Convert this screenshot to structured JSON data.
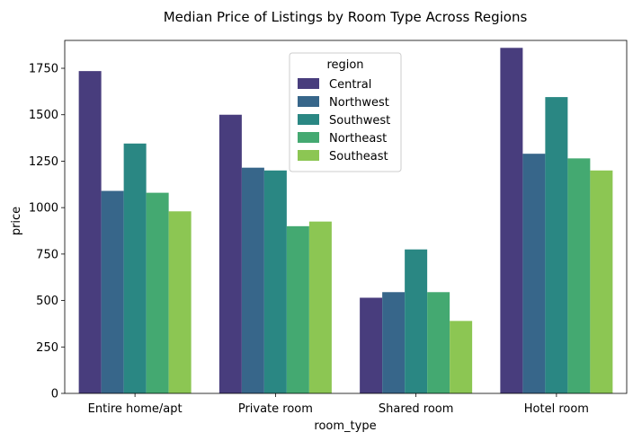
{
  "chart_data": {
    "type": "bar",
    "title": "Median Price of Listings by Room Type Across Regions",
    "xlabel": "room_type",
    "ylabel": "price",
    "categories": [
      "Entire home/apt",
      "Private room",
      "Shared room",
      "Hotel room"
    ],
    "ylim": [
      0,
      1900
    ],
    "yticks": [
      0,
      250,
      500,
      750,
      1000,
      1250,
      1500,
      1750
    ],
    "grid": false,
    "legend": {
      "title": "region",
      "placement": "top-center"
    },
    "series": [
      {
        "name": "Central",
        "color": "#483d7d",
        "values": [
          1735,
          1500,
          515,
          1860
        ]
      },
      {
        "name": "Northwest",
        "color": "#37668a",
        "values": [
          1090,
          1215,
          545,
          1290
        ]
      },
      {
        "name": "Southwest",
        "color": "#2a8783",
        "values": [
          1345,
          1200,
          775,
          1595
        ]
      },
      {
        "name": "Northeast",
        "color": "#44a971",
        "values": [
          1080,
          900,
          545,
          1265
        ]
      },
      {
        "name": "Southeast",
        "color": "#8cc653",
        "values": [
          980,
          925,
          390,
          1200
        ]
      }
    ]
  }
}
